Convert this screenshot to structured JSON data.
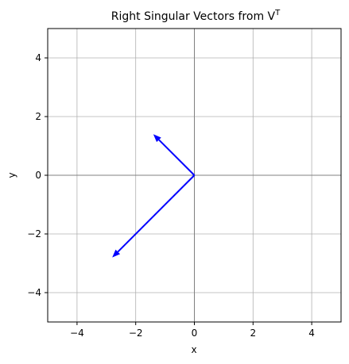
{
  "chart_data": {
    "type": "vector",
    "title": "Right Singular Vectors from V",
    "title_superscript": "T",
    "xlabel": "x",
    "ylabel": "y",
    "xlim": [
      -5,
      5
    ],
    "ylim": [
      -5,
      5
    ],
    "xticks": [
      -4,
      -2,
      0,
      2,
      4
    ],
    "yticks": [
      -4,
      -2,
      0,
      2,
      4
    ],
    "grid": true,
    "axis_lines_at_origin": true,
    "vectors": [
      {
        "origin": [
          0,
          0
        ],
        "end": [
          -1.4,
          1.4
        ],
        "color": "#0000ff"
      },
      {
        "origin": [
          0,
          0
        ],
        "end": [
          -2.8,
          -2.8
        ],
        "color": "#0000ff"
      }
    ],
    "colors": {
      "grid": "#b0b0b0",
      "origin_axes": "#808080",
      "vector": "#0000ff"
    }
  }
}
